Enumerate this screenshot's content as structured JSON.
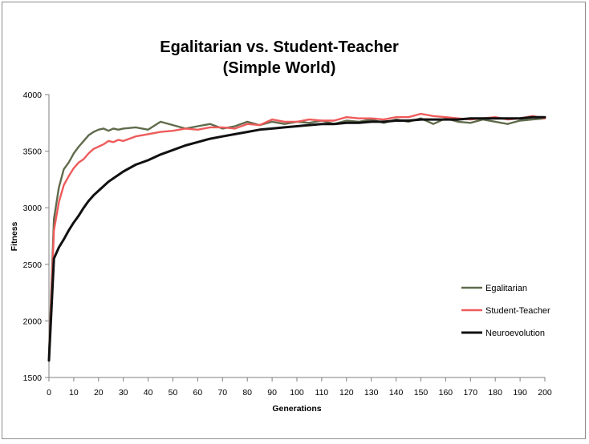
{
  "colors": {
    "egalitarian": "#5f6b4b",
    "student_teacher": "#ef5b5b",
    "neuroevolution": "#111111"
  },
  "chart_data": {
    "type": "line",
    "title_line1": "Egalitarian vs. Student-Teacher",
    "title_line2": "(Simple World)",
    "xlabel": "Generations",
    "ylabel": "Fitness",
    "xlim": [
      0,
      200
    ],
    "ylim": [
      1500,
      4000
    ],
    "x_ticks": [
      0,
      10,
      20,
      30,
      40,
      50,
      60,
      70,
      80,
      90,
      100,
      110,
      120,
      130,
      140,
      150,
      160,
      170,
      180,
      190,
      200
    ],
    "y_ticks": [
      1500,
      2000,
      2500,
      3000,
      3500,
      4000
    ],
    "grid": false,
    "legend_position": "right",
    "series_x": [
      0,
      2,
      4,
      6,
      8,
      10,
      12,
      14,
      16,
      18,
      20,
      22,
      24,
      26,
      28,
      30,
      35,
      40,
      45,
      50,
      55,
      60,
      65,
      70,
      75,
      80,
      85,
      90,
      95,
      100,
      105,
      110,
      115,
      120,
      125,
      130,
      135,
      140,
      145,
      150,
      155,
      160,
      165,
      170,
      175,
      180,
      185,
      190,
      195,
      200
    ],
    "series": [
      {
        "key": "egalitarian",
        "name": "Egalitarian",
        "values": [
          1700,
          2900,
          3180,
          3340,
          3400,
          3480,
          3540,
          3590,
          3640,
          3670,
          3690,
          3700,
          3680,
          3700,
          3690,
          3700,
          3710,
          3690,
          3760,
          3730,
          3700,
          3720,
          3740,
          3700,
          3720,
          3760,
          3730,
          3760,
          3740,
          3760,
          3750,
          3770,
          3740,
          3770,
          3760,
          3780,
          3750,
          3780,
          3760,
          3790,
          3740,
          3790,
          3760,
          3750,
          3780,
          3760,
          3740,
          3770,
          3780,
          3790
        ]
      },
      {
        "key": "student_teacher",
        "name": "Student-Teacher",
        "values": [
          1650,
          2800,
          3050,
          3200,
          3280,
          3350,
          3400,
          3430,
          3480,
          3520,
          3540,
          3560,
          3590,
          3580,
          3600,
          3590,
          3630,
          3650,
          3670,
          3680,
          3700,
          3690,
          3710,
          3710,
          3700,
          3740,
          3730,
          3780,
          3760,
          3760,
          3780,
          3770,
          3770,
          3800,
          3790,
          3790,
          3780,
          3800,
          3800,
          3830,
          3810,
          3800,
          3790,
          3780,
          3790,
          3800,
          3780,
          3790,
          3810,
          3790
        ]
      },
      {
        "key": "neuroevolution",
        "name": "Neuroevolution",
        "values": [
          1650,
          2550,
          2650,
          2720,
          2800,
          2870,
          2930,
          3000,
          3060,
          3110,
          3150,
          3190,
          3230,
          3260,
          3290,
          3320,
          3380,
          3420,
          3470,
          3510,
          3550,
          3580,
          3610,
          3630,
          3650,
          3670,
          3690,
          3700,
          3710,
          3720,
          3730,
          3740,
          3740,
          3750,
          3750,
          3760,
          3760,
          3770,
          3770,
          3780,
          3780,
          3780,
          3780,
          3790,
          3790,
          3790,
          3790,
          3790,
          3800,
          3800
        ]
      }
    ]
  }
}
